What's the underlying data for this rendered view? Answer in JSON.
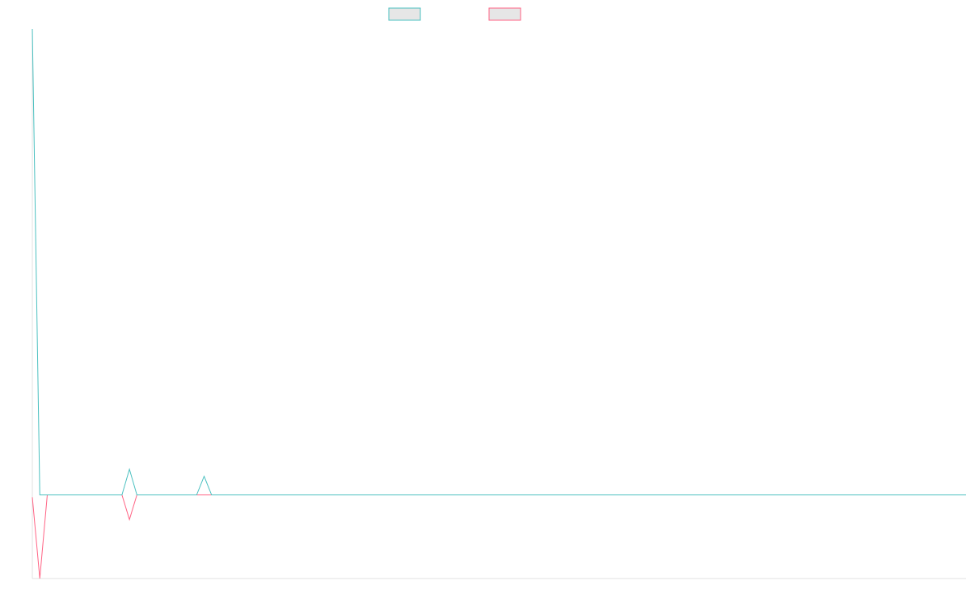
{
  "chart_data": {
    "type": "line",
    "title": "",
    "xlabel": "",
    "ylabel": "",
    "grid": false,
    "legend_position": "top-center",
    "colors": {
      "series_a": "#4bc0c0",
      "series_b": "#ff6384",
      "legend_fill": "#e6e6e6",
      "axis": "#e0e0e0"
    },
    "x": [
      0,
      1,
      2,
      3,
      4,
      5,
      6,
      7,
      8,
      9,
      10,
      11,
      12,
      13,
      14,
      15,
      16,
      17,
      18,
      19,
      20,
      21,
      22,
      23,
      24,
      25,
      26,
      27,
      28,
      29,
      30,
      31,
      32,
      33,
      34,
      35,
      36,
      37,
      38,
      39,
      40,
      41,
      42,
      43,
      44,
      45,
      46,
      47,
      48,
      49,
      50,
      51,
      52,
      53,
      54,
      55,
      56,
      57,
      58,
      59,
      60,
      61,
      62,
      63,
      64,
      65,
      66,
      67,
      68,
      69,
      70,
      71,
      72,
      73,
      74,
      75,
      76,
      77,
      78,
      79,
      80,
      81,
      82,
      83,
      84,
      85,
      86,
      87,
      88,
      89,
      90,
      91,
      92,
      93,
      94,
      95,
      96,
      97,
      98,
      99,
      100,
      101,
      102,
      103,
      104,
      105,
      106,
      107,
      108,
      109,
      110,
      111,
      112,
      113,
      114,
      115,
      116,
      117,
      118,
      119,
      120,
      121,
      122,
      123,
      124,
      125
    ],
    "ylim": [
      -18,
      100
    ],
    "series": [
      {
        "values": [
          100,
          0,
          0,
          0,
          0,
          0,
          0,
          0,
          0,
          0,
          0,
          0,
          0,
          5.5,
          0,
          0,
          0,
          0,
          0,
          0,
          0,
          0,
          0,
          4,
          0,
          0,
          0,
          0,
          0,
          0,
          0,
          0,
          0,
          0,
          0,
          0,
          0,
          0,
          0,
          0,
          0,
          0,
          0,
          0,
          0,
          0,
          0,
          0,
          0,
          0,
          0,
          0,
          0,
          0,
          0,
          0,
          0,
          0,
          0,
          0,
          0,
          0,
          0,
          0,
          0,
          0,
          0,
          0,
          0,
          0,
          0,
          0,
          0,
          0,
          0,
          0,
          0,
          0,
          0,
          0,
          0,
          0,
          0,
          0,
          0,
          0,
          0,
          0,
          0,
          0,
          0,
          0,
          0,
          0,
          0,
          0,
          0,
          0,
          0,
          0,
          0,
          0,
          0,
          0,
          0,
          0,
          0,
          0,
          0,
          0,
          0,
          0,
          0,
          0,
          0,
          0,
          0,
          0,
          0,
          0,
          0,
          0,
          0,
          0,
          0,
          0
        ]
      },
      {
        "values": [
          -0.5,
          -18,
          0,
          0,
          0,
          0,
          0,
          0,
          0,
          0,
          0,
          0,
          0,
          -5.3,
          0,
          0,
          0,
          0,
          0,
          0,
          0,
          0,
          0,
          0,
          0,
          0,
          0,
          0,
          0,
          0,
          0,
          0,
          0,
          0,
          0,
          0,
          0,
          0,
          0,
          0,
          0,
          0,
          0,
          0,
          0,
          0,
          0,
          0,
          0,
          0,
          0,
          0,
          0,
          0,
          0,
          0,
          0,
          0,
          0,
          0,
          0,
          0,
          0,
          0,
          0,
          0,
          0,
          0,
          0,
          0,
          0,
          0,
          0,
          0,
          0,
          0,
          0,
          0,
          0,
          0,
          0,
          0,
          0,
          0,
          0,
          0,
          0,
          0,
          0,
          0,
          0,
          0,
          0,
          0,
          0,
          0,
          0,
          0,
          0,
          0,
          0,
          0,
          0,
          0,
          0,
          0,
          0,
          0,
          0,
          0,
          0,
          0,
          0,
          0,
          0,
          0,
          0,
          0,
          0,
          0,
          0,
          0,
          0,
          0,
          0,
          0
        ]
      }
    ]
  }
}
